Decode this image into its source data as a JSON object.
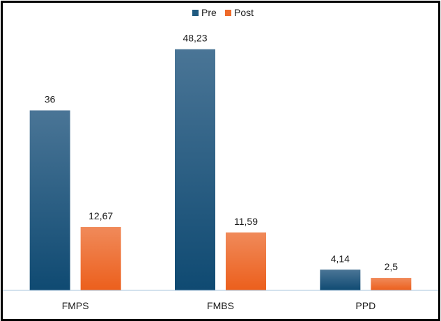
{
  "chart_data": {
    "type": "bar",
    "title": "",
    "xlabel": "",
    "ylabel": "",
    "categories": [
      "FMPS",
      "FMBS",
      "PPD"
    ],
    "series": [
      {
        "name": "Pre",
        "values": [
          36,
          48.23,
          4.14
        ],
        "labels": [
          "36",
          "48,23",
          "4,14"
        ],
        "color": "#1f5a80"
      },
      {
        "name": "Post",
        "values": [
          12.67,
          11.59,
          2.5
        ],
        "labels": [
          "12,67",
          "11,59",
          "2,5"
        ],
        "color": "#ee6a2a"
      }
    ],
    "ylim": [
      0,
      52
    ],
    "grid": false,
    "legend_position": "top-center",
    "axis_color": "#a9c4de"
  }
}
